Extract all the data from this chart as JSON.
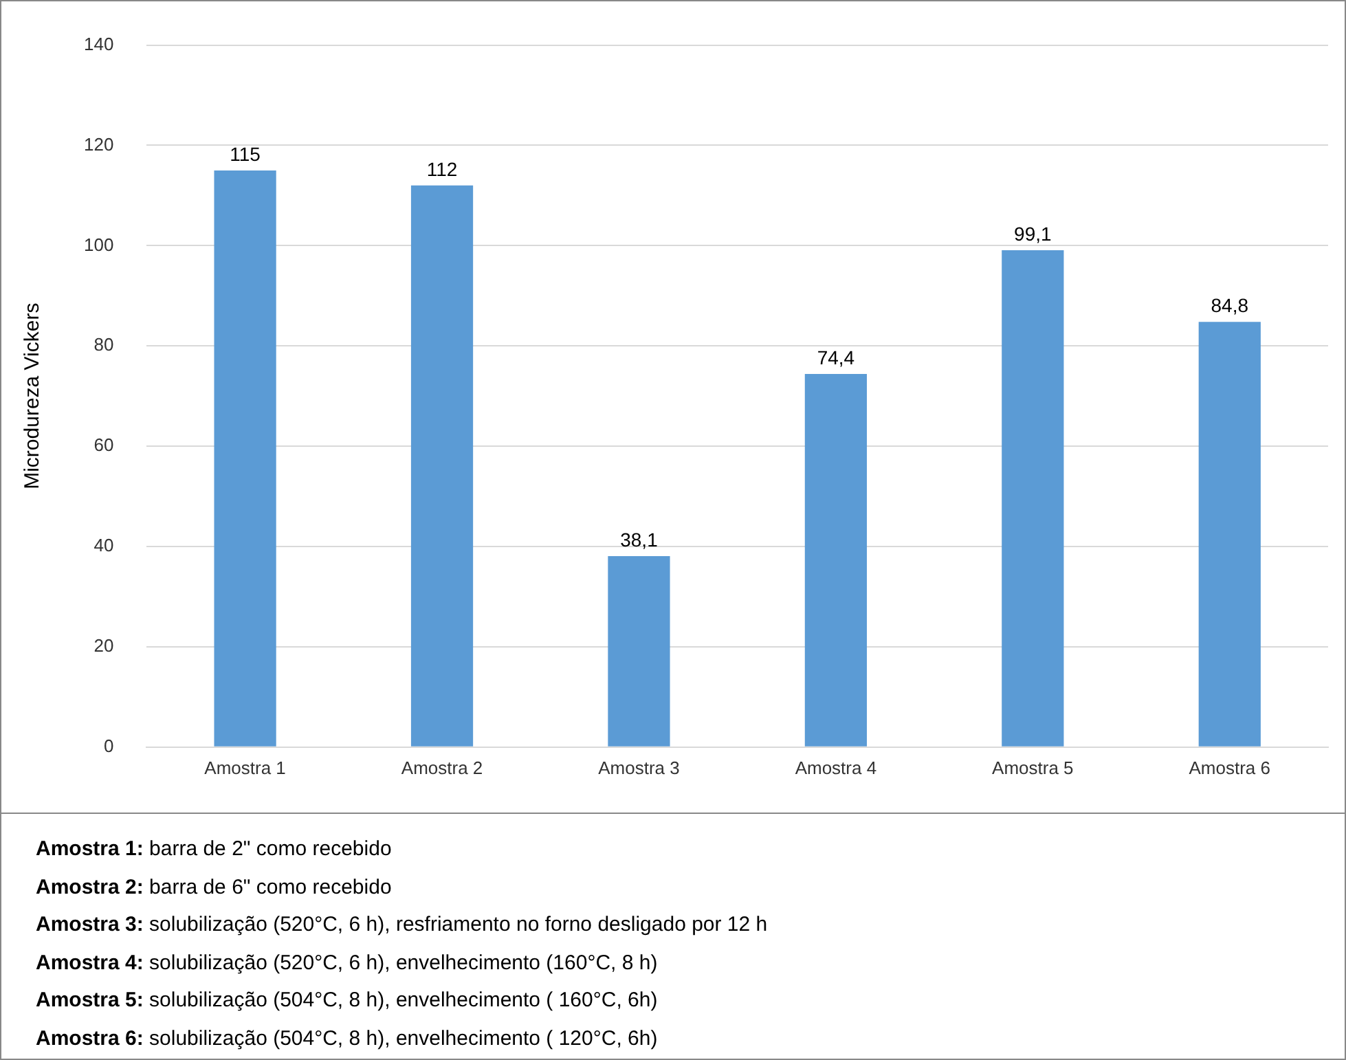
{
  "chart_data": {
    "type": "bar",
    "ylabel": "Microdureza Vickers",
    "categories": [
      "Amostra 1",
      "Amostra 2",
      "Amostra 3",
      "Amostra 4",
      "Amostra 5",
      "Amostra 6"
    ],
    "values": [
      115,
      112,
      38.1,
      74.4,
      99.1,
      84.8
    ],
    "value_labels": [
      "115",
      "112",
      "38,1",
      "74,4",
      "99,1",
      "84,8"
    ],
    "color": "#5b9bd5",
    "ylim": [
      0,
      140
    ],
    "yticks": [
      0,
      20,
      40,
      60,
      80,
      100,
      120,
      140
    ],
    "grid": "y",
    "legend": false,
    "annotations": [
      "Amostra 1: barra de 2\" como recebido",
      "Amostra 2: barra de 6\" como recebido",
      "Amostra 3: solubilização (520°C, 6 h), resfriamento no forno desligado por 12 h",
      "Amostra 4: solubilização (520°C, 6 h), envelhecimento (160°C, 8 h)",
      "Amostra 5: solubilização (504°C, 8 h), envelhecimento ( 160°C, 6h)",
      "Amostra 6: solubilização (504°C, 8 h), envelhecimento ( 120°C, 6h)"
    ]
  }
}
